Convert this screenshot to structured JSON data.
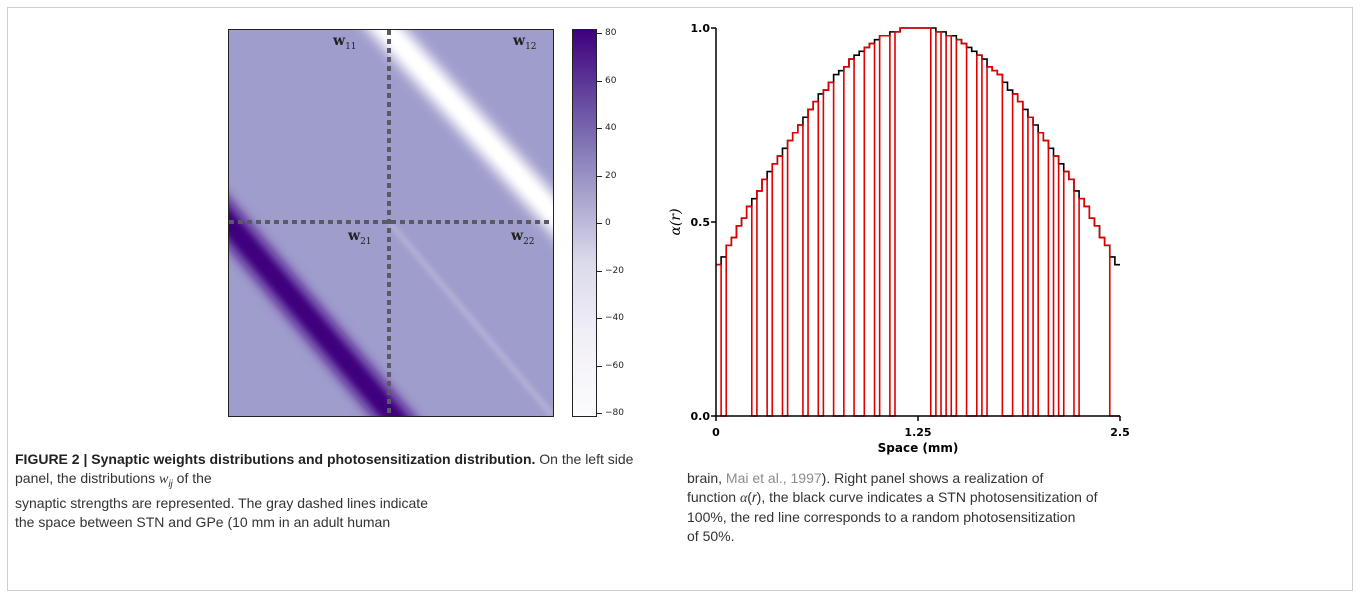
{
  "figure": {
    "left_panel": {
      "labels": {
        "w11": {
          "base": "w",
          "sub": "11"
        },
        "w12": {
          "base": "w",
          "sub": "12"
        },
        "w21": {
          "base": "w",
          "sub": "21"
        },
        "w22": {
          "base": "w",
          "sub": "22"
        }
      },
      "colorbar": {
        "ticks": [
          "80",
          "60",
          "40",
          "20",
          "0",
          "−20",
          "−40",
          "−60",
          "−80"
        ],
        "range": [
          -80,
          80
        ],
        "colors": {
          "high": "#3f007d",
          "mid": "#9e9ac8",
          "low": "#fcfbfd"
        }
      }
    },
    "right_panel": {
      "y_ticks": [
        "1.0",
        "0.5",
        "0.0"
      ],
      "x_ticks": [
        "0",
        "1.25",
        "2.5"
      ],
      "xlabel": "Space (mm)",
      "ylabel": "α(r)",
      "colors": {
        "full": "#000000",
        "random": "#e00000"
      }
    }
  },
  "chart_data": [
    {
      "type": "heatmap",
      "colorbar_range": [
        -80,
        80
      ],
      "blocks": [
        "w11",
        "w12",
        "w21",
        "w22"
      ],
      "background_value": 22,
      "band_values": {
        "w12": -80,
        "w21": 80
      }
    },
    {
      "type": "line",
      "xlabel": "Space (mm)",
      "ylabel": "α(r)",
      "xlim": [
        0,
        2.5
      ],
      "ylim": [
        0,
        1
      ],
      "series": [
        {
          "values": [
            0.39,
            0.41,
            0.44,
            0.46,
            0.49,
            0.51,
            0.54,
            0.56,
            0.58,
            0.61,
            0.63,
            0.65,
            0.67,
            0.69,
            0.71,
            0.73,
            0.75,
            0.77,
            0.79,
            0.81,
            0.83,
            0.84,
            0.86,
            0.88,
            0.89,
            0.9,
            0.92,
            0.93,
            0.94,
            0.95,
            0.96,
            0.97,
            0.98,
            0.98,
            0.99,
            0.99,
            1.0,
            1.0,
            1.0,
            1.0,
            1.0,
            1.0,
            1.0,
            0.99,
            0.99,
            0.98,
            0.98,
            0.97,
            0.96,
            0.95,
            0.94,
            0.93,
            0.92,
            0.9,
            0.89,
            0.88,
            0.86,
            0.84,
            0.83,
            0.81,
            0.79,
            0.77,
            0.75,
            0.73,
            0.71,
            0.69,
            0.67,
            0.65,
            0.63,
            0.61,
            0.58,
            0.56,
            0.54,
            0.51,
            0.49,
            0.46,
            0.44,
            0.41,
            0.39
          ]
        },
        {
          "on": [
            1,
            0,
            1,
            1,
            1,
            1,
            1,
            0,
            1,
            1,
            0,
            1,
            1,
            0,
            1,
            1,
            1,
            0,
            1,
            1,
            0,
            1,
            1,
            0,
            0,
            1,
            1,
            0,
            0,
            1,
            1,
            0,
            1,
            1,
            0,
            1,
            1,
            1,
            1,
            1,
            1,
            1,
            0,
            1,
            0,
            1,
            0,
            1,
            1,
            0,
            0,
            1,
            0,
            1,
            1,
            1,
            0,
            0,
            1,
            1,
            0,
            1,
            0,
            1,
            1,
            0,
            1,
            0,
            1,
            1,
            0,
            1,
            1,
            1,
            1,
            1,
            1,
            0,
            0
          ]
        }
      ]
    }
  ],
  "caption": {
    "fig_label": "FIGURE 2 | Synaptic weights distributions and photosensitization distribution.",
    "left": {
      "l1_text": "On the left side panel, the distributions",
      "l1_sym": "w",
      "l1_sub": "ij",
      "l1_end": "of the",
      "l2": "synaptic strengths are represented. The gray dashed lines indicate",
      "l3": "the space between STN and GPe (10 mm in an adult human"
    },
    "right": {
      "l1_pre": "brain,",
      "l1_ref": "Mai et al., 1997",
      "l1_post": "). Right panel shows a realization of",
      "l2_pre": "function",
      "l2_sym": "α",
      "l2_var": "r",
      "l2_post": ", the black curve indicates a STN photosensitization of",
      "l3": "100%, the red line corresponds to a random photosensitization",
      "l4": "of 50%."
    }
  }
}
